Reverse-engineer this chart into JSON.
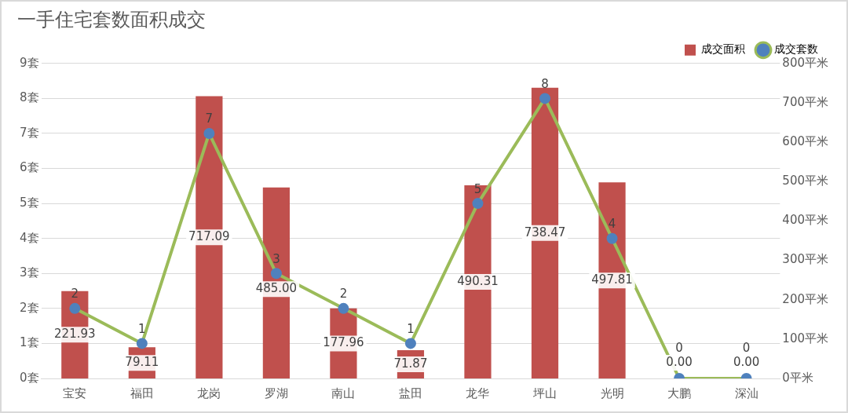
{
  "chart_data": {
    "type": "bar",
    "title": "一手住宅套数面积成交",
    "categories": [
      "宝安",
      "福田",
      "龙岗",
      "罗湖",
      "南山",
      "盐田",
      "龙华",
      "坪山",
      "光明",
      "大鹏",
      "深汕"
    ],
    "series": [
      {
        "name": "成交面积",
        "type": "bar",
        "axis": "y2",
        "color": "#c0504d",
        "values": [
          221.93,
          79.11,
          717.09,
          485.0,
          177.96,
          71.87,
          490.31,
          738.47,
          497.81,
          0,
          0
        ],
        "value_labels": [
          "221.93",
          "79.11",
          "717.09",
          "485.00",
          "177.96",
          "71.87",
          "490.31",
          "738.47",
          "497.81",
          "0.00",
          "0.00"
        ]
      },
      {
        "name": "成交套数",
        "type": "line",
        "color": "#9bbb59",
        "values": [
          2,
          1,
          7,
          3,
          2,
          1,
          5,
          8,
          4,
          0,
          0
        ],
        "value_labels": [
          "2",
          "1",
          "7",
          "3",
          "2",
          "1",
          "5",
          "8",
          "4",
          "0",
          "0"
        ]
      }
    ],
    "ylim": [
      0,
      9
    ],
    "yticks": [
      {
        "value": 0,
        "label": "0套"
      },
      {
        "value": 1,
        "label": "1套"
      },
      {
        "value": 2,
        "label": "2套"
      },
      {
        "value": 3,
        "label": "3套"
      },
      {
        "value": 4,
        "label": "4套"
      },
      {
        "value": 5,
        "label": "5套"
      },
      {
        "value": 6,
        "label": "6套"
      },
      {
        "value": 7,
        "label": "7套"
      },
      {
        "value": 8,
        "label": "8套"
      },
      {
        "value": 9,
        "label": "9套"
      }
    ],
    "y2lim": [
      0,
      800
    ],
    "y2ticks": [
      {
        "value": 0,
        "label": "0平米"
      },
      {
        "value": 100,
        "label": "100平米"
      },
      {
        "value": 200,
        "label": "200平米"
      },
      {
        "value": 300,
        "label": "300平米"
      },
      {
        "value": 400,
        "label": "400平米"
      },
      {
        "value": 500,
        "label": "500平米"
      },
      {
        "value": 600,
        "label": "600平米"
      },
      {
        "value": 700,
        "label": "700平米"
      },
      {
        "value": 800,
        "label": "800平米"
      }
    ],
    "grid": "y",
    "legend": "top right",
    "marker": "circle",
    "line_style": "solid"
  }
}
